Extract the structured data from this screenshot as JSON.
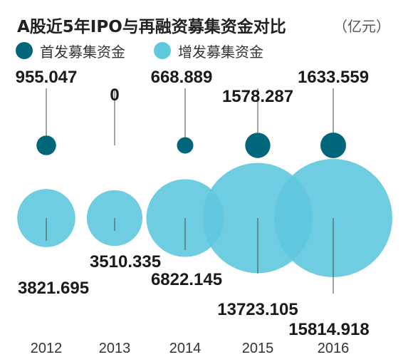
{
  "title": "A股近5年IPO与再融资募集资金对比",
  "unit": "（亿元）",
  "legend": [
    {
      "label": "首发募集资金",
      "color": "#00677a"
    },
    {
      "label": "增发募集资金",
      "color": "#5fc8df"
    }
  ],
  "chart_data": {
    "type": "bubble",
    "categories": [
      "2012",
      "2013",
      "2014",
      "2015",
      "2016"
    ],
    "series": [
      {
        "name": "首发募集资金",
        "color": "#00677a",
        "values": [
          955.047,
          0,
          668.889,
          1578.287,
          1633.559
        ]
      },
      {
        "name": "增发募集资金",
        "color": "#5fc8df",
        "values": [
          3821.695,
          3510.335,
          6822.145,
          13723.105,
          15814.918
        ]
      }
    ],
    "value_labels": {
      "ipo": [
        "955.047",
        "0",
        "668.889",
        "1578.287",
        "1633.559"
      ],
      "follow_on": [
        "3821.695",
        "3510.335",
        "6822.145",
        "13723.105",
        "15814.918"
      ]
    }
  }
}
